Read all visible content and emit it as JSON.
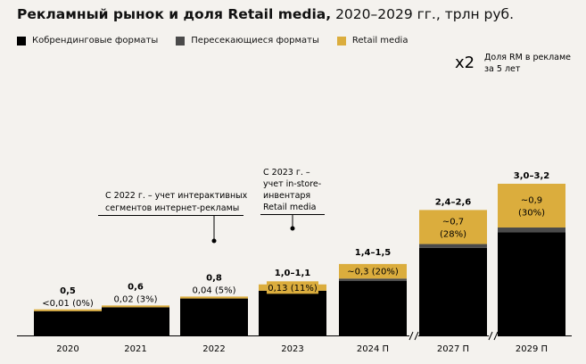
{
  "title": {
    "bold": "Рекламный рынок и доля Retail media,",
    "normal": " 2020–2029 гг., трлн руб."
  },
  "colors": {
    "black": "#000000",
    "gray": "#4a4a4a",
    "gold": "#dbad3d",
    "bg": "#f4f2ee"
  },
  "legend": [
    {
      "label": "Кобрендинговые форматы",
      "color": "#000000"
    },
    {
      "label": "Пересекающиеся форматы",
      "color": "#4a4a4a"
    },
    {
      "label": "Retail media",
      "color": "#dbad3d"
    }
  ],
  "multiplier": {
    "value": "x2",
    "line1": "Доля RM в рекламе",
    "line2": "за 5 лет"
  },
  "annotations": {
    "a2022": {
      "line1": "С 2022 г. – учет интерактивных",
      "line2": "сегментов интернет-рекламы"
    },
    "a2023": {
      "line1": "С 2023 г. –",
      "line2": "учет in-store-",
      "line3": "инвентаря",
      "line4": "Retail media"
    }
  },
  "chart_data": {
    "type": "bar",
    "stacked": true,
    "unit": "трлн руб.",
    "categories": [
      "2020",
      "2021",
      "2022",
      "2023",
      "2024 П",
      "2027 П",
      "2029 П"
    ],
    "axis_breaks_after": [
      "2024 П",
      "2027 П"
    ],
    "series": [
      {
        "name": "Кобрендинговые форматы",
        "values": [
          0.5,
          0.58,
          0.76,
          0.92,
          1.12,
          1.8,
          2.12
        ]
      },
      {
        "name": "Пересекающиеся форматы",
        "values": [
          0,
          0,
          0,
          0,
          0.05,
          0.08,
          0.1
        ]
      },
      {
        "name": "Retail media",
        "values": [
          0.01,
          0.02,
          0.04,
          0.13,
          0.3,
          0.7,
          0.9
        ]
      }
    ],
    "total_labels": [
      "0,5",
      "0,6",
      "0,8",
      "1,0–1,1",
      "1,4–1,5",
      "2,4–2,6",
      "3,0–3,2"
    ],
    "rm_labels": [
      "<0,01 (0%)",
      "0,02 (3%)",
      "0,04 (5%)",
      "0,13 (11%)",
      "~0,3 (20%)",
      "~0,7",
      "~0,9"
    ],
    "rm_share_labels": [
      "",
      "",
      "",
      "",
      "",
      "(28%)",
      "(30%)"
    ],
    "rm_label_position": [
      "above",
      "above",
      "above",
      "on-bar",
      "on-bar",
      "inside",
      "inside"
    ]
  }
}
